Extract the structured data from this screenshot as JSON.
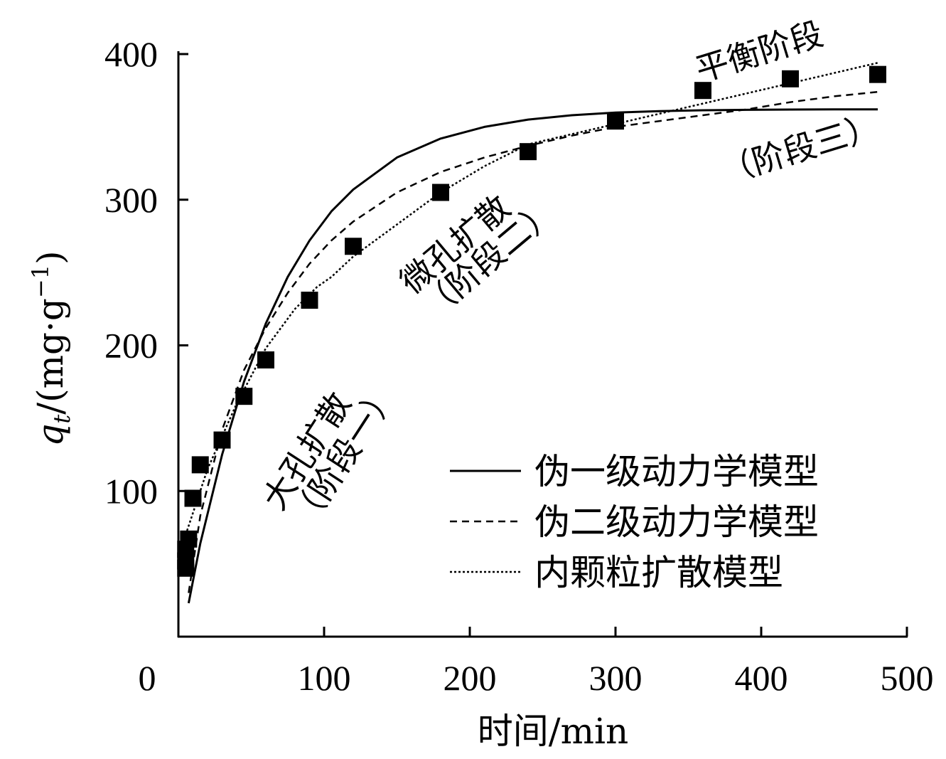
{
  "chart_data": {
    "type": "scatter",
    "xlabel": "时间/min",
    "ylabel_var": "q",
    "ylabel_sub": "t",
    "ylabel_rest": "/(mg·g",
    "ylabel_sup": "−1",
    "ylabel_end": ")",
    "xlim": [
      0,
      500
    ],
    "ylim": [
      0,
      400
    ],
    "xticks": [
      0,
      100,
      200,
      300,
      400,
      500
    ],
    "yticks": [
      100,
      200,
      300,
      400
    ],
    "grid": false,
    "legend_position": "bottom-right",
    "experimental_points": {
      "x": [
        5,
        5,
        5,
        7,
        10,
        15,
        30,
        45,
        60,
        90,
        120,
        180,
        240,
        300,
        360,
        420,
        480
      ],
      "y": [
        47,
        52,
        60,
        67,
        95,
        118,
        135,
        165,
        190,
        231,
        268,
        305,
        333,
        354,
        375,
        383,
        386
      ]
    },
    "series": [
      {
        "name": "伪一级动力学模型",
        "style": "solid",
        "x": [
          7,
          15,
          30,
          45,
          60,
          75,
          90,
          105,
          120,
          150,
          180,
          210,
          240,
          270,
          300,
          330,
          360,
          390,
          420,
          450,
          480
        ],
        "y": [
          23,
          64,
          125,
          175,
          215,
          247,
          272,
          292,
          307,
          329,
          342,
          350,
          355,
          358,
          359.8,
          360.8,
          361.4,
          361.7,
          361.9,
          362,
          362
        ]
      },
      {
        "name": "伪二级动力学模型",
        "style": "dashed",
        "x": [
          7,
          15,
          30,
          45,
          60,
          75,
          90,
          105,
          120,
          150,
          180,
          210,
          240,
          270,
          300,
          330,
          360,
          390,
          420,
          450,
          480
        ],
        "y": [
          30,
          83,
          142,
          183,
          212,
          236,
          256,
          272,
          285,
          305,
          319,
          329,
          337,
          344,
          350,
          354,
          358,
          362,
          367,
          371,
          374
        ]
      },
      {
        "name": "内颗粒扩散模型",
        "style": "dotted",
        "x": [
          5,
          20,
          40,
          60,
          80,
          95,
          105,
          120,
          150,
          180,
          210,
          240,
          270,
          300,
          360,
          420,
          480
        ],
        "y": [
          70,
          115,
          160,
          198,
          225,
          240,
          247,
          261,
          283,
          305,
          323,
          338,
          345,
          352,
          366,
          380,
          394
        ]
      }
    ],
    "annotations": [
      {
        "text": "大孔扩散"
      },
      {
        "text": "（阶段一）"
      },
      {
        "text": "微孔扩散"
      },
      {
        "text": "（阶段二）"
      },
      {
        "text": "平衡阶段"
      },
      {
        "text": "（阶段三）"
      }
    ]
  }
}
